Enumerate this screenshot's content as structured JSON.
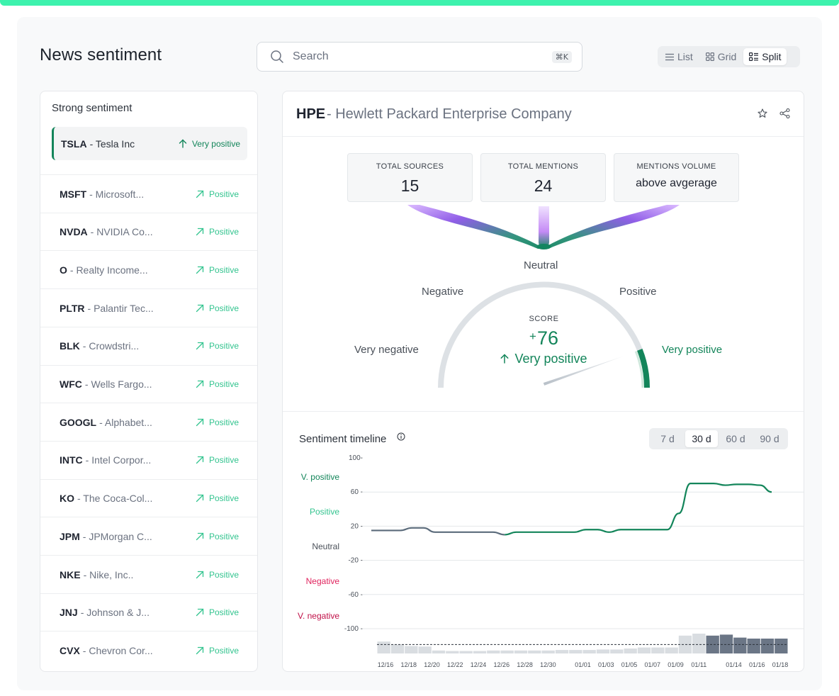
{
  "header": {
    "title": "News sentiment",
    "search_placeholder": "Search",
    "search_shortcut": "⌘K",
    "views": [
      {
        "label": "List",
        "icon": "list-icon",
        "active": false
      },
      {
        "label": "Grid",
        "icon": "grid-icon",
        "active": false
      },
      {
        "label": "Split",
        "icon": "split-icon",
        "active": true
      }
    ]
  },
  "sidebar": {
    "heading": "Strong sentiment",
    "selected": {
      "ticker": "TSLA",
      "name": "- Tesla Inc",
      "sentiment": "Very positive"
    },
    "items": [
      {
        "ticker": "MSFT",
        "name": "- Microsoft...",
        "sentiment": "Positive"
      },
      {
        "ticker": "NVDA",
        "name": "- NVIDIA Co...",
        "sentiment": "Positive"
      },
      {
        "ticker": "O",
        "name": "- Realty Income...",
        "sentiment": "Positive"
      },
      {
        "ticker": "PLTR",
        "name": "- Palantir Tec...",
        "sentiment": "Positive"
      },
      {
        "ticker": "BLK",
        "name": "- Crowdstri...",
        "sentiment": "Positive"
      },
      {
        "ticker": "WFC",
        "name": "- Wells Fargo...",
        "sentiment": "Positive"
      },
      {
        "ticker": "GOOGL",
        "name": "- Alphabet...",
        "sentiment": "Positive"
      },
      {
        "ticker": "INTC",
        "name": "- Intel Corpor...",
        "sentiment": "Positive"
      },
      {
        "ticker": "KO",
        "name": "- The Coca-Col...",
        "sentiment": "Positive"
      },
      {
        "ticker": "JPM",
        "name": "- JPMorgan C...",
        "sentiment": "Positive"
      },
      {
        "ticker": "NKE",
        "name": "- Nike, Inc..",
        "sentiment": "Positive"
      },
      {
        "ticker": "JNJ",
        "name": "- Johnson & J...",
        "sentiment": "Positive"
      },
      {
        "ticker": "CVX",
        "name": "- Chevron Cor...",
        "sentiment": "Positive"
      }
    ]
  },
  "detail": {
    "ticker": "HPE",
    "name": "- Hewlett Packard Enterprise Company",
    "stats": [
      {
        "label": "TOTAL SOURCES",
        "value": "15"
      },
      {
        "label": "TOTAL MENTIONS",
        "value": "24"
      },
      {
        "label": "MENTIONS VOLUME",
        "value": "above avgerage"
      }
    ],
    "gauge": {
      "labels": {
        "neutral": "Neutral",
        "negative": "Negative",
        "positive": "Positive",
        "very_negative": "Very negative",
        "very_positive": "Very positive"
      },
      "score_label": "SCORE",
      "score_sign": "+",
      "score_value": "76",
      "score_text": "Very positive",
      "score": 76
    },
    "timeline": {
      "title": "Sentiment timeline",
      "ranges": [
        {
          "label": "7 d",
          "active": false
        },
        {
          "label": "30 d",
          "active": true
        },
        {
          "label": "60 d",
          "active": false
        },
        {
          "label": "90 d",
          "active": false
        }
      ],
      "zones": [
        {
          "label": "V. positive",
          "color": "#13855a"
        },
        {
          "label": "Positive",
          "color": "#33c48f"
        },
        {
          "label": "Neutral",
          "color": "#4a5059"
        },
        {
          "label": "Negative",
          "color": "#e0245e"
        },
        {
          "label": "V. negative",
          "color": "#c01048"
        }
      ]
    }
  },
  "chart_data": {
    "type": "line",
    "ylim": [
      -100,
      100
    ],
    "yticks": [
      "100-",
      "60 -",
      "20 -",
      "-20 -",
      "-60 -",
      "-100 -"
    ],
    "ytick_values": [
      100,
      60,
      20,
      -20,
      -60,
      -100
    ],
    "xtick_labels": [
      "12/16",
      "12/18",
      "12/20",
      "12/22",
      "12/24",
      "12/26",
      "12/28",
      "12/30",
      "01/01",
      "01/03",
      "01/05",
      "01/07",
      "01/09",
      "01/11",
      "01/14",
      "01/16",
      "01/18"
    ],
    "series": [
      {
        "x": [
          "12/16",
          "12/18",
          "12/19",
          "12/20",
          "12/21",
          "12/24",
          "12/26",
          "12/27",
          "12/28",
          "12/30",
          "01/01",
          "01/02",
          "01/03",
          "01/04",
          "01/05",
          "01/06",
          "01/07",
          "01/09",
          "01/10",
          "01/11",
          "01/12",
          "01/13",
          "01/14",
          "01/15",
          "01/16",
          "01/17",
          "01/18"
        ],
        "y": [
          15,
          15,
          18,
          18,
          13,
          13,
          13,
          10,
          13,
          13,
          13,
          16,
          16,
          13,
          16,
          16,
          16,
          16,
          35,
          70,
          70,
          70,
          68,
          69,
          69,
          68,
          60
        ]
      }
    ],
    "segment_colors": {
      "neutral": "#5b6b7b",
      "positive": "#13855a"
    },
    "volume_bars": [
      24,
      18,
      15,
      14,
      6,
      5,
      5,
      5,
      6,
      6,
      6,
      6,
      6,
      7,
      7,
      7,
      8,
      8,
      10,
      12,
      12,
      12,
      36,
      40,
      36,
      38,
      32,
      30,
      30,
      30
    ],
    "volume_highlight_from": 24,
    "volume_average": 18
  }
}
